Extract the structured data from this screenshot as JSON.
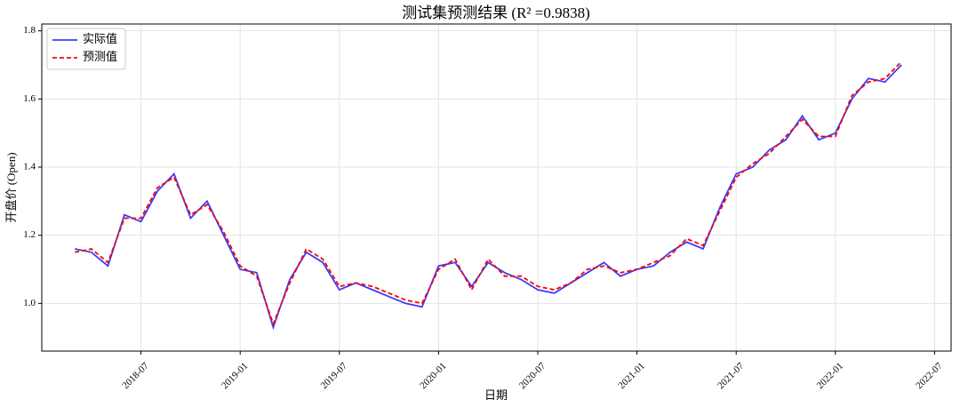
{
  "chart_data": {
    "type": "line",
    "title": "测试集预测结果  (R² =0.9838)",
    "x_label": "日期",
    "y_label": "开盘价 (Open)",
    "x": [
      "2018-03",
      "2018-04",
      "2018-05",
      "2018-06",
      "2018-07",
      "2018-08",
      "2018-09",
      "2018-10",
      "2018-11",
      "2018-12",
      "2019-01",
      "2019-02",
      "2019-03",
      "2019-04",
      "2019-05",
      "2019-06",
      "2019-07",
      "2019-08",
      "2019-09",
      "2019-10",
      "2019-11",
      "2019-12",
      "2020-01",
      "2020-02",
      "2020-03",
      "2020-04",
      "2020-05",
      "2020-06",
      "2020-07",
      "2020-08",
      "2020-09",
      "2020-10",
      "2020-11",
      "2020-12",
      "2021-01",
      "2021-02",
      "2021-03",
      "2021-04",
      "2021-05",
      "2021-06",
      "2021-07",
      "2021-08",
      "2021-09",
      "2021-10",
      "2021-11",
      "2021-12",
      "2022-01",
      "2022-02",
      "2022-03",
      "2022-04",
      "2022-05"
    ],
    "series": [
      {
        "name": "实际值",
        "color": "#3b3bff",
        "linestyle": "solid",
        "values": [
          1.16,
          1.15,
          1.11,
          1.26,
          1.24,
          1.33,
          1.38,
          1.25,
          1.3,
          1.2,
          1.1,
          1.09,
          0.93,
          1.07,
          1.15,
          1.12,
          1.04,
          1.06,
          1.04,
          1.02,
          1.0,
          0.99,
          1.11,
          1.12,
          1.05,
          1.12,
          1.09,
          1.07,
          1.04,
          1.03,
          1.06,
          1.09,
          1.12,
          1.08,
          1.1,
          1.11,
          1.15,
          1.18,
          1.16,
          1.28,
          1.38,
          1.4,
          1.45,
          1.48,
          1.55,
          1.48,
          1.5,
          1.6,
          1.66,
          1.65,
          1.7
        ]
      },
      {
        "name": "预测值",
        "color": "#ff0000",
        "linestyle": "dashed",
        "values": [
          1.15,
          1.16,
          1.12,
          1.25,
          1.25,
          1.34,
          1.37,
          1.26,
          1.29,
          1.21,
          1.11,
          1.08,
          0.94,
          1.06,
          1.16,
          1.13,
          1.05,
          1.06,
          1.05,
          1.03,
          1.01,
          1.0,
          1.1,
          1.13,
          1.04,
          1.13,
          1.08,
          1.08,
          1.05,
          1.04,
          1.06,
          1.1,
          1.11,
          1.09,
          1.1,
          1.12,
          1.14,
          1.19,
          1.17,
          1.27,
          1.37,
          1.41,
          1.44,
          1.49,
          1.54,
          1.49,
          1.49,
          1.61,
          1.65,
          1.66,
          1.71
        ]
      }
    ],
    "xlim": [
      "2018-01",
      "2022-08"
    ],
    "xticks": [
      "2018-07",
      "2019-01",
      "2019-07",
      "2020-01",
      "2020-07",
      "2021-01",
      "2021-07",
      "2022-01",
      "2022-07"
    ],
    "ylim": [
      0.86,
      1.82
    ],
    "yticks": [
      {
        "value": 1,
        "label": "1.0"
      },
      1.2,
      1.4,
      1.6,
      1.8
    ],
    "grid": true,
    "legend": "upper left"
  }
}
